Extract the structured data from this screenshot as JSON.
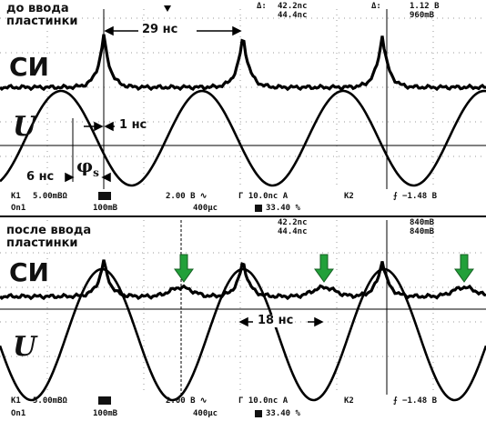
{
  "top_panel": {
    "header": {
      "marker_a": "Δ:",
      "value_a1": "42.2nc",
      "value_a2": "44.4nc",
      "marker_b": "Δ:",
      "value_b1": "1.12 B",
      "value_b2": "960mB",
      "trigger_icon": "trigger-marker-icon"
    },
    "caption": "до ввода\nпластинки",
    "period_label": "29 нс",
    "si_label": "СИ",
    "u_label": "U",
    "delay_label": "1 нс",
    "offset_label": "6 нс",
    "phase_label": "φ",
    "phase_sub": "s",
    "status_row1": {
      "k1": "K1",
      "scale1": "5.00mBΩ",
      "scale2": "2.00 B ∿",
      "timebase": "Γ 10.0nc  A",
      "k2": "K2",
      "trig": "⨍ −1.48 B"
    },
    "status_row2": {
      "ch": "On1",
      "v1": "100mB",
      "v2": "400μc",
      "pct": "33.40 %"
    }
  },
  "bottom_panel": {
    "header": {
      "value_a1": "42.2nc",
      "value_a2": "44.4nc",
      "value_b1": "840mB",
      "value_b2": "840mB"
    },
    "caption": "после ввода\nпластинки",
    "si_label": "СИ",
    "u_label": "U",
    "shift_label": "18 нс",
    "arrow_color": "#22a03a",
    "status_row1": {
      "k1": "K1",
      "scale1": "5.00mBΩ",
      "scale2": "2.00 B ∿",
      "timebase": "Γ 10.0nc  A",
      "k2": "K2",
      "trig": "⨍ −1.48 B"
    },
    "status_row2": {
      "ch": "On1",
      "v1": "100mB",
      "v2": "400μc",
      "pct": "33.40 %"
    }
  }
}
